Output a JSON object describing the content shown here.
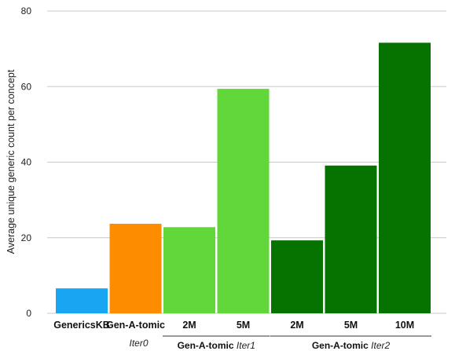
{
  "chart_data": {
    "type": "bar",
    "ylabel": "Average unique generic count per concept",
    "ylim": [
      0,
      80
    ],
    "yticks": [
      0,
      20,
      40,
      60,
      80
    ],
    "grid": true,
    "categories": [
      "GenericsKB",
      "Gen-A-tomic",
      "2M",
      "5M",
      "2M",
      "5M",
      "10M"
    ],
    "values": [
      6.6,
      23.7,
      22.8,
      59.4,
      19.3,
      39.1,
      71.6
    ],
    "colors": [
      "#18a6f2",
      "#fd8c00",
      "#62d73a",
      "#62d73a",
      "#067200",
      "#067200",
      "#067200"
    ],
    "groups": [
      {
        "label": "Gen-A-tomic",
        "sub": "Iter1",
        "members": [
          2,
          3
        ]
      },
      {
        "label": "Gen-A-tomic",
        "sub": "Iter2",
        "members": [
          4,
          5,
          6
        ]
      }
    ],
    "extra_labels": [
      {
        "text": "Iter0",
        "under": 1
      }
    ]
  }
}
